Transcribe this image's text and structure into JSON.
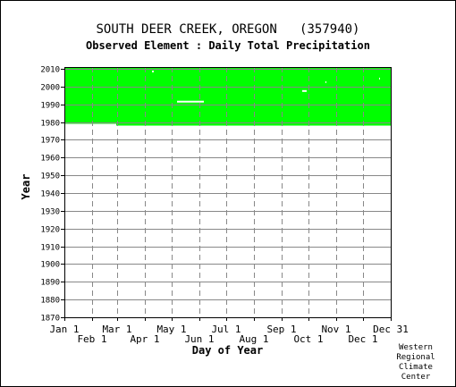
{
  "chart_data": {
    "type": "heatmap",
    "title": "SOUTH DEER CREEK, OREGON   (357940)",
    "subtitle": "Observed Element : Daily Total Precipitation",
    "xlabel": "Day of Year",
    "ylabel": "Year",
    "x_ticks_upper": [
      "Jan 1",
      "Mar 1",
      "May 1",
      "Jul 1",
      "Sep 1",
      "Nov 1",
      "Dec 31"
    ],
    "x_ticks_lower": [
      "Feb 1",
      "Apr 1",
      "Jun 1",
      "Aug 1",
      "Oct 1",
      "Dec 1"
    ],
    "y_ticks": [
      1870,
      1880,
      1890,
      1900,
      1910,
      1920,
      1930,
      1940,
      1950,
      1960,
      1970,
      1980,
      1990,
      2000,
      2010
    ],
    "xlim": [
      1,
      366
    ],
    "ylim": [
      1870,
      2011
    ],
    "grid": true,
    "fill_color": "#00ff00",
    "coverage": [
      {
        "day_start": 1,
        "day_end": 59,
        "year_start": 1979,
        "year_end": 2010
      },
      {
        "day_start": 59,
        "day_end": 366,
        "year_start": 1978,
        "year_end": 2010
      }
    ],
    "gaps": [
      {
        "day_start": 99,
        "day_end": 101,
        "year_start": 2008,
        "year_end": 2009
      },
      {
        "day_start": 127,
        "day_end": 157,
        "year_start": 1991,
        "year_end": 1992
      },
      {
        "day_start": 267,
        "day_end": 272,
        "year_start": 1997,
        "year_end": 1998
      },
      {
        "day_start": 293,
        "day_end": 294,
        "year_start": 2002,
        "year_end": 2003
      },
      {
        "day_start": 353,
        "day_end": 354,
        "year_start": 2004,
        "year_end": 2005
      }
    ]
  },
  "credit": [
    "Western",
    "Regional",
    "Climate",
    "Center"
  ]
}
